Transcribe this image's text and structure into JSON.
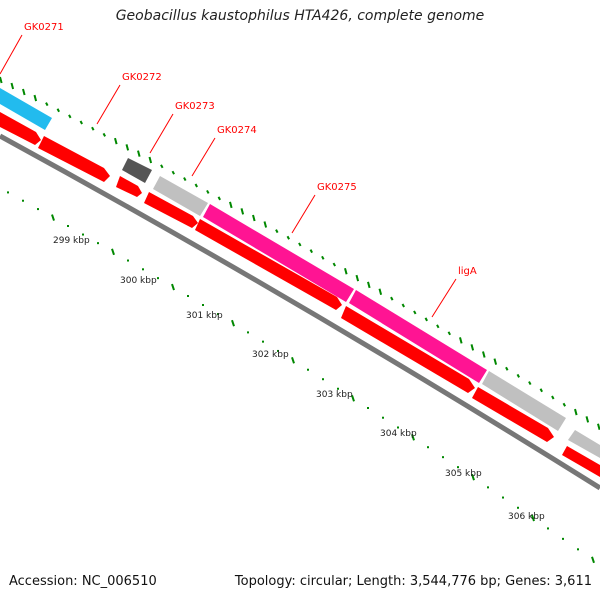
{
  "title": "Geobacillus kaustophilus HTA426, complete genome",
  "footer": {
    "accession": "Accession: NC_006510",
    "summary": "Topology: circular; Length: 3,544,776 bp; Genes: 3,611"
  },
  "colors": {
    "gc_marks": "#008800",
    "cds": "#ff0000",
    "gene_label": "#ff0000",
    "backbone": "#777777"
  },
  "ruler": [
    "299 kbp",
    "300 kbp",
    "301 kbp",
    "302 kbp",
    "303 kbp",
    "304 kbp",
    "305 kbp",
    "306 kbp"
  ],
  "genes": [
    {
      "label": "GK0271",
      "color": "#22bbee"
    },
    {
      "label": "GK0272",
      "color": "#ff0000"
    },
    {
      "label": "GK0273",
      "color": "#555555"
    },
    {
      "label": "GK0274",
      "color": "#c0c0c0"
    },
    {
      "label": "GK0275",
      "color": "#ff1493"
    },
    {
      "label": "ligA",
      "color": "#ff1493"
    }
  ]
}
